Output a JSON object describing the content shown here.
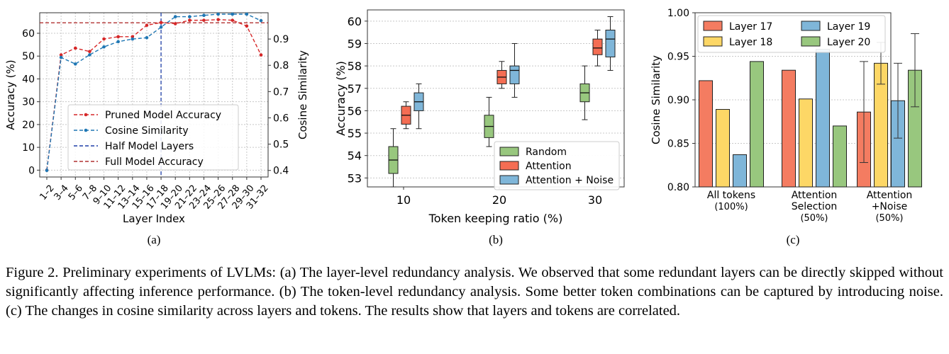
{
  "chart_data": [
    {
      "type": "line",
      "panel_label": "(a)",
      "xlabel": "Layer Index",
      "ylabel": "Accuracy (%)",
      "y2label": "Cosine Similarity",
      "categories": [
        "1–2",
        "3–4",
        "5–6",
        "7–8",
        "9–10",
        "11–12",
        "13–14",
        "15–16",
        "17–18",
        "19–20",
        "21–22",
        "23–24",
        "25–26",
        "27–28",
        "29–30",
        "31–32"
      ],
      "ylim": [
        -3,
        69
      ],
      "y2lim": [
        0.375,
        1.0
      ],
      "yticks": [
        0,
        10,
        20,
        30,
        40,
        50,
        60
      ],
      "y2ticks": [
        0.4,
        0.5,
        0.6,
        0.7,
        0.8,
        0.9
      ],
      "grid": true,
      "legend_position": "bottom-right",
      "series": [
        {
          "name": "Pruned Model Accuracy",
          "axis": "left",
          "color": "#d62728",
          "values": [
            0,
            50.5,
            53.5,
            52,
            57.5,
            58.5,
            58.5,
            63.5,
            64.7,
            64.2,
            65.7,
            65.7,
            66,
            65.7,
            63.2,
            50.5
          ]
        },
        {
          "name": "Cosine Similarity",
          "axis": "right",
          "color": "#1f77b4",
          "values": [
            0.4,
            0.83,
            0.805,
            0.84,
            0.87,
            0.89,
            0.9,
            0.905,
            0.945,
            0.985,
            0.985,
            0.99,
            1.01,
            1.0,
            1.005,
            0.97
          ]
        }
      ],
      "reference_lines": [
        {
          "name": "Half Model Layers",
          "orientation": "vertical",
          "at_category": "17–18",
          "color": "#1f3fa8"
        },
        {
          "name": "Full Model Accuracy",
          "orientation": "horizontal",
          "value": 64.6,
          "color": "#b03030"
        }
      ]
    },
    {
      "type": "box",
      "panel_label": "(b)",
      "xlabel": "Token keeping ratio (%)",
      "ylabel": "Accuracy (%)",
      "categories": [
        "10",
        "20",
        "30"
      ],
      "ylim": [
        52.6,
        60.5
      ],
      "yticks": [
        53,
        54,
        55,
        56,
        57,
        58,
        59,
        60
      ],
      "grid": true,
      "legend_position": "bottom-right",
      "series": [
        {
          "name": "Random",
          "color": "#98c77e",
          "boxes": [
            {
              "min": 52.6,
              "q1": 53.2,
              "median": 53.8,
              "q3": 54.4,
              "max": 55.2
            },
            {
              "min": 54.4,
              "q1": 54.8,
              "median": 55.3,
              "q3": 55.8,
              "max": 56.6
            },
            {
              "min": 55.6,
              "q1": 56.4,
              "median": 56.8,
              "q3": 57.2,
              "max": 58.0
            }
          ]
        },
        {
          "name": "Attention",
          "color": "#f46d53",
          "boxes": [
            {
              "min": 55.2,
              "q1": 55.4,
              "median": 55.8,
              "q3": 56.2,
              "max": 56.4
            },
            {
              "min": 57.0,
              "q1": 57.2,
              "median": 57.5,
              "q3": 57.8,
              "max": 58.2
            },
            {
              "min": 58.0,
              "q1": 58.5,
              "median": 58.8,
              "q3": 59.2,
              "max": 59.6
            }
          ]
        },
        {
          "name": "Attention + Noise",
          "color": "#7fb6d9",
          "boxes": [
            {
              "min": 55.2,
              "q1": 56.0,
              "median": 56.4,
              "q3": 56.8,
              "max": 57.2
            },
            {
              "min": 56.6,
              "q1": 57.2,
              "median": 57.8,
              "q3": 58.0,
              "max": 59.0
            },
            {
              "min": 57.8,
              "q1": 58.4,
              "median": 59.2,
              "q3": 59.6,
              "max": 60.2
            }
          ]
        }
      ]
    },
    {
      "type": "bar",
      "panel_label": "(c)",
      "ylabel": "Cosine Similarity",
      "categories": [
        [
          "All tokens",
          "(100%)"
        ],
        [
          "Attention",
          "Selection",
          "(50%)"
        ],
        [
          "Attention",
          "+Noise",
          "(50%)"
        ]
      ],
      "ylim": [
        0.8,
        1.0
      ],
      "yticks": [
        "0.80",
        "0.85",
        "0.90",
        "0.95",
        "1.00"
      ],
      "grid": true,
      "legend_position": "top",
      "series": [
        {
          "name": "Layer 17",
          "color": "#f47c61",
          "values": [
            0.922,
            0.934,
            0.886
          ],
          "error": [
            null,
            null,
            0.058
          ]
        },
        {
          "name": "Layer 18",
          "color": "#fdd766",
          "values": [
            0.889,
            0.901,
            0.942
          ],
          "error": [
            null,
            null,
            0.024
          ]
        },
        {
          "name": "Layer 19",
          "color": "#7fb6d9",
          "values": [
            0.837,
            0.958,
            0.899
          ],
          "error": [
            null,
            null,
            0.043
          ]
        },
        {
          "name": "Layer 20",
          "color": "#98c77e",
          "values": [
            0.944,
            0.87,
            0.934
          ],
          "error": [
            null,
            null,
            0.042
          ]
        }
      ]
    }
  ],
  "caption": "Figure 2. Preliminary experiments of LVLMs: (a) The layer-level redundancy analysis. We observed that some redundant layers can be directly skipped without significantly affecting inference performance. (b) The token-level redundancy analysis. Some better token combinations can be captured by introducing noise. (c) The changes in cosine similarity across layers and tokens. The results show that layers and tokens are correlated."
}
